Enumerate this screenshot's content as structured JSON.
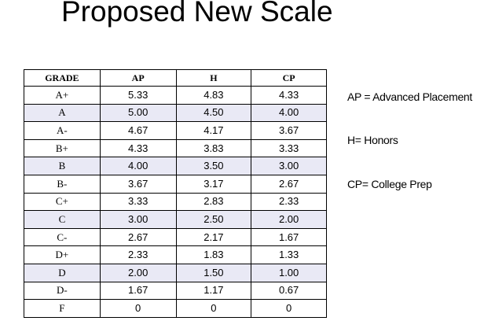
{
  "title": "Proposed New Scale",
  "table": {
    "headers": [
      "GRADE",
      "AP",
      "H",
      "CP"
    ],
    "rows": [
      {
        "grade": "A+",
        "ap": "5.33",
        "h": "4.83",
        "cp": "4.33",
        "shaded": false
      },
      {
        "grade": "A",
        "ap": "5.00",
        "h": "4.50",
        "cp": "4.00",
        "shaded": true
      },
      {
        "grade": "A-",
        "ap": "4.67",
        "h": "4.17",
        "cp": "3.67",
        "shaded": false
      },
      {
        "grade": "B+",
        "ap": "4.33",
        "h": "3.83",
        "cp": "3.33",
        "shaded": false
      },
      {
        "grade": "B",
        "ap": "4.00",
        "h": "3.50",
        "cp": "3.00",
        "shaded": true
      },
      {
        "grade": "B-",
        "ap": "3.67",
        "h": "3.17",
        "cp": "2.67",
        "shaded": false
      },
      {
        "grade": "C+",
        "ap": "3.33",
        "h": "2.83",
        "cp": "2.33",
        "shaded": false
      },
      {
        "grade": "C",
        "ap": "3.00",
        "h": "2.50",
        "cp": "2.00",
        "shaded": true
      },
      {
        "grade": "C-",
        "ap": "2.67",
        "h": "2.17",
        "cp": "1.67",
        "shaded": false
      },
      {
        "grade": "D+",
        "ap": "2.33",
        "h": "1.83",
        "cp": "1.33",
        "shaded": false
      },
      {
        "grade": "D",
        "ap": "2.00",
        "h": "1.50",
        "cp": "1.00",
        "shaded": true
      },
      {
        "grade": "D-",
        "ap": "1.67",
        "h": "1.17",
        "cp": "0.67",
        "shaded": false
      },
      {
        "grade": "F",
        "ap": "0",
        "h": "0",
        "cp": "0",
        "shaded": false
      }
    ]
  },
  "legend": {
    "ap": "AP = Advanced Placement",
    "h": "H= Honors",
    "cp": "CP= College Prep"
  },
  "colors": {
    "shaded_row": "#e9e9f5",
    "border": "#000000"
  }
}
